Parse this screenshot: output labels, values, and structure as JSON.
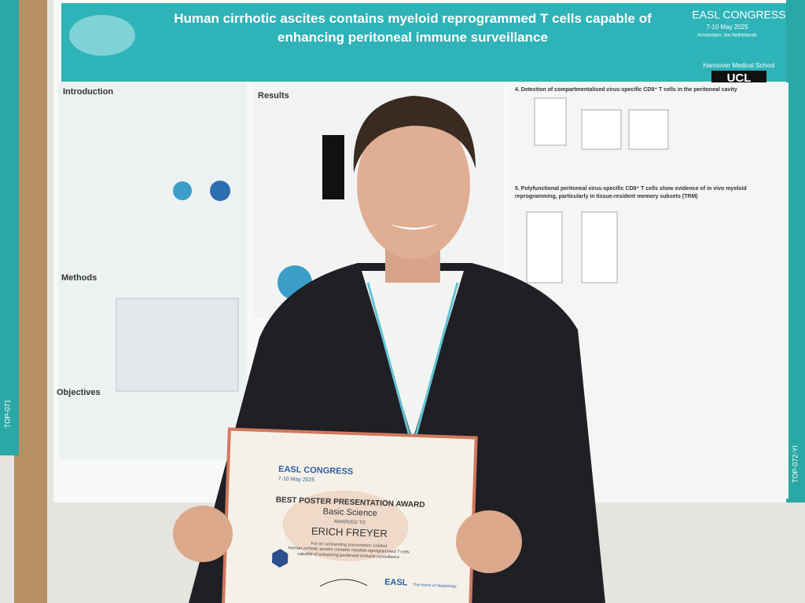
{
  "poster": {
    "title": "Human cirrhotic ascites contains myeloid reprogrammed T cells capable of enhancing peritoneal immune surveillance",
    "congress": "EASL CONGRESS",
    "dates": "7-10 May 2025",
    "location": "Amsterdam, the Netherlands",
    "institution": "Hannover Medical School",
    "university": "UCL",
    "sections": [
      "Introduction",
      "Results",
      "Methods",
      "Objectives"
    ],
    "panel_title": "4. Detection of compartmentalised virus-specific CD8⁺ T cells in the peritoneal cavity",
    "panel_title_2": "5. Polyfunctional peritoneal virus-specific CD8⁺ T cells show evidence of in vivo myeloid reprogramming, particularly in tissue-resident memory subsets (TRM)",
    "board_codes": [
      "TOP-071",
      "TOP-072-YI"
    ]
  },
  "certificate": {
    "congress": "EASL CONGRESS",
    "dates": "7-10 May 2025",
    "award": "BEST POSTER PRESENTATION AWARD",
    "category": "Basic Science",
    "awarded_to": "AWARDED TO",
    "recipient": "ERICH FREYER",
    "entitled": "For an outstanding presentation entitled",
    "presentation_title": "Human cirrhotic ascites contains myeloid reprogrammed T-cells capable of enhancing peritoneal immune surveillance",
    "footer_logo": "EASL",
    "footer_tagline": "The Home of Hepatology"
  }
}
